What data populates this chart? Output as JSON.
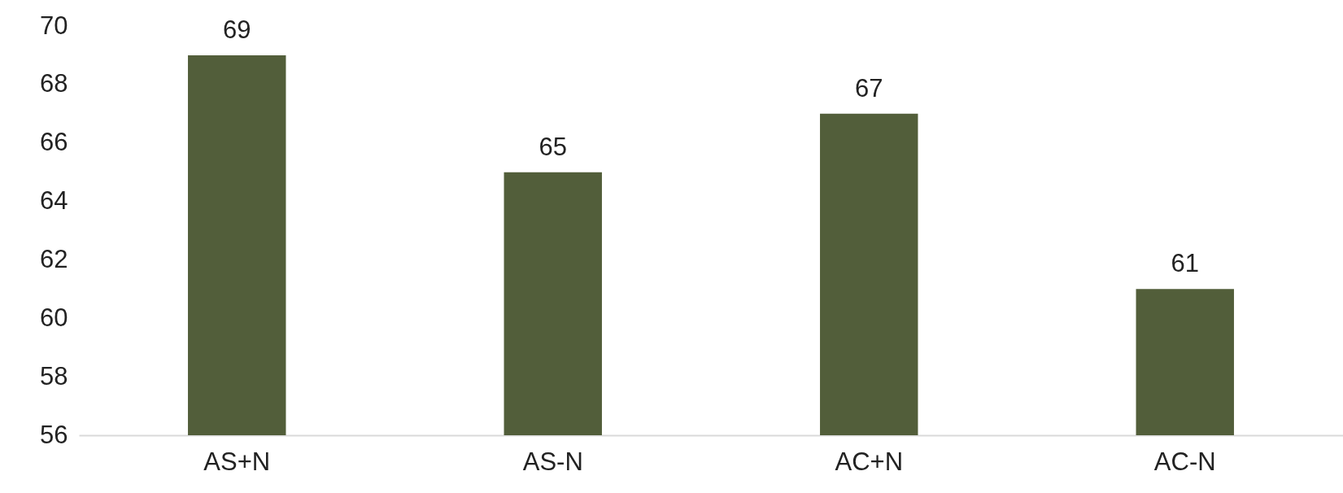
{
  "chart_data": {
    "type": "bar",
    "categories": [
      "AS+N",
      "AS-N",
      "AC+N",
      "AC-N"
    ],
    "values": [
      69,
      65,
      67,
      61
    ],
    "color": "#525e3a",
    "ylim": [
      56,
      70
    ],
    "yticks": [
      56,
      58,
      60,
      62,
      64,
      66,
      68,
      70
    ],
    "grid": false,
    "data_labels": true
  }
}
